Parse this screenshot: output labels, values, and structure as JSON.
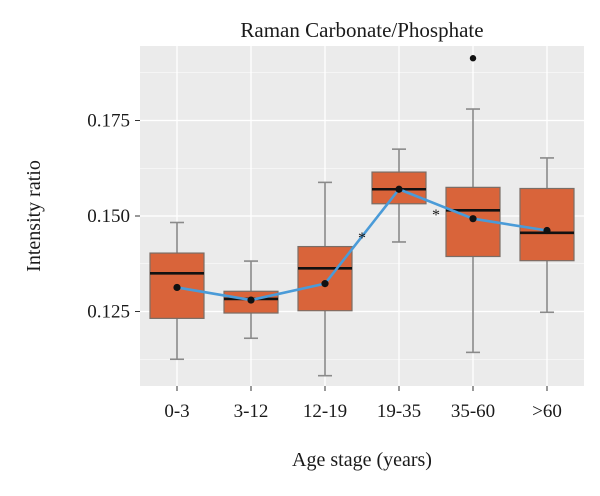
{
  "chart_data": {
    "type": "box",
    "title": "Raman Carbonate/Phosphate",
    "xlabel": "Age stage (years)",
    "ylabel": "Intensity ratio",
    "categories": [
      "0-3",
      "3-12",
      "12-19",
      "19-35",
      "35-60",
      ">60"
    ],
    "y_ticks": [
      {
        "value": 0.125,
        "label": "0.125"
      },
      {
        "value": 0.15,
        "label": "0.150"
      },
      {
        "value": 0.175,
        "label": "0.175"
      }
    ],
    "ylim": [
      0.1055,
      0.1945
    ],
    "grid": true,
    "boxes": [
      {
        "category": "0-3",
        "whisker_low": 0.1125,
        "q1": 0.1232,
        "median": 0.135,
        "q3": 0.1403,
        "whisker_high": 0.1483,
        "mean": 0.1313,
        "outliers": []
      },
      {
        "category": "3-12",
        "whisker_low": 0.118,
        "q1": 0.1246,
        "median": 0.1283,
        "q3": 0.1303,
        "whisker_high": 0.1382,
        "mean": 0.128,
        "outliers": []
      },
      {
        "category": "12-19",
        "whisker_low": 0.1082,
        "q1": 0.1252,
        "median": 0.1363,
        "q3": 0.142,
        "whisker_high": 0.1588,
        "mean": 0.1323,
        "outliers": []
      },
      {
        "category": "19-35",
        "whisker_low": 0.1432,
        "q1": 0.1532,
        "median": 0.157,
        "q3": 0.1615,
        "whisker_high": 0.1675,
        "mean": 0.157,
        "outliers": []
      },
      {
        "category": "35-60",
        "whisker_low": 0.1143,
        "q1": 0.1394,
        "median": 0.1515,
        "q3": 0.1575,
        "whisker_high": 0.178,
        "mean": 0.1493,
        "outliers": [
          0.1913
        ]
      },
      {
        "category": ">60",
        "whisker_low": 0.1248,
        "q1": 0.1383,
        "median": 0.1456,
        "q3": 0.1572,
        "whisker_high": 0.1652,
        "mean": 0.1462,
        "outliers": []
      }
    ],
    "mean_line": true,
    "significance_marks": [
      {
        "between": [
          "12-19",
          "19-35"
        ],
        "value": 0.1445,
        "label": "*"
      },
      {
        "between": [
          "19-35",
          "35-60"
        ],
        "value": 0.1505,
        "label": "*"
      }
    ],
    "colors": {
      "panel_background": "#ebebeb",
      "grid": "#ffffff",
      "box_fill": "#d9643a",
      "box_border": "#7a6d66",
      "whisker": "#8a8a8a",
      "median": "#111111",
      "mean_line": "#4a9bd8",
      "mean_point": "#111111"
    }
  }
}
